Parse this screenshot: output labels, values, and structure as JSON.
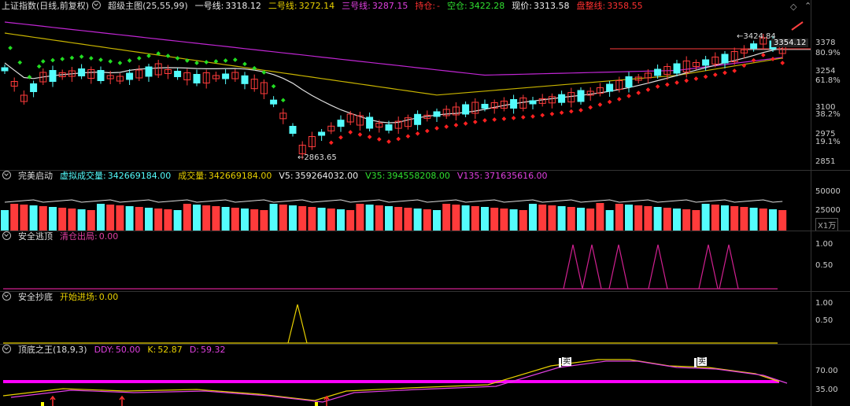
{
  "main": {
    "title": "上证指数(日线,前复权)",
    "indicator": "超级主图(25,55,99)",
    "line1_label": "一号线:",
    "line1_value": "3318.12",
    "line2_label": "二号线:",
    "line2_value": "3272.14",
    "line3_label": "三号线:",
    "line3_value": "3287.15",
    "hold_label": "持仓:",
    "hold_value": "-",
    "empty_label": "空仓:",
    "empty_value": "3422.28",
    "price_label": "现价:",
    "price_value": "3313.58",
    "stop_label": "盘整线:",
    "stop_value": "3358.55",
    "axis_ticks": [
      "3378",
      "80.9%",
      "3254",
      "61.8%",
      "3100",
      "38.2%",
      "2975",
      "19.1%",
      "2851"
    ],
    "high_label": "3424.84",
    "low_label": "2863.65",
    "price_tag": "3354.12",
    "colors": {
      "up": "#ff3b3b",
      "down": "#54fcfc",
      "ma1": "#e0e0e0",
      "ma2": "#c8b400",
      "ma3": "#c026d3",
      "dots_up": "#ff2020",
      "dots_dn": "#22dd22"
    }
  },
  "volume": {
    "title": "完美启动",
    "v_label": "虚拟成交量:",
    "v_value": "342669184.00",
    "vol_label": "成交量:",
    "vol_value": "342669184.00",
    "v5_label": "V5:",
    "v5_value": "359264032.00",
    "v35_label": "V35:",
    "v35_value": "394558208.00",
    "v135_label": "V135:",
    "v135_value": "371635616.00",
    "axis_ticks": [
      "50000",
      "25000"
    ],
    "unit": "X1万"
  },
  "escape": {
    "title": "安全逃顶",
    "label": "清仓出局:",
    "value": "0.00",
    "axis_ticks": [
      "1.00",
      "0.50"
    ]
  },
  "bottom": {
    "title": "安全抄底",
    "label": "开始进场:",
    "value": "0.00",
    "axis_ticks": [
      "1.00",
      "0.50"
    ]
  },
  "king": {
    "title": "顶底之王(18,9,3)",
    "ddy_label": "DDY:",
    "ddy_value": "50.00",
    "k_label": "K:",
    "k_value": "52.87",
    "d_label": "D:",
    "d_value": "59.32",
    "axis_ticks": [
      "70.00",
      "35.00"
    ],
    "sell_mark": "卖"
  }
}
